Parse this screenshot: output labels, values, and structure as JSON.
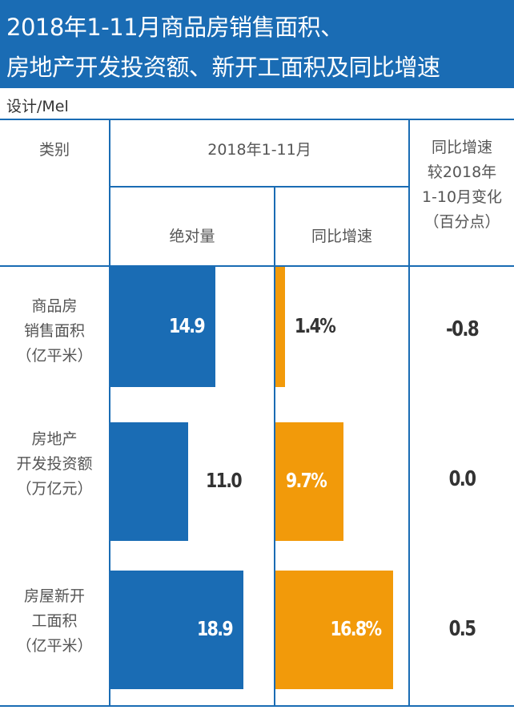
{
  "title": {
    "line1": "2018年1-11月商品房销售面积、",
    "line2": "房地产开发投资额、新开工面积及同比增速"
  },
  "credit": "设计/Mel",
  "headers": {
    "category": "类别",
    "period": "2018年1-11月",
    "absolute": "绝对量",
    "yoy": "同比增速",
    "change": [
      "同比增速",
      "较2018年",
      "1-10月变化",
      "（百分点）"
    ]
  },
  "colors": {
    "abs_bar": "#1a6cb4",
    "yoy_bar": "#f29a0a",
    "title_bg": "#1a6cb4"
  },
  "chart_data": {
    "type": "bar",
    "categories": [
      [
        "商品房",
        "销售面积",
        "（亿平米）"
      ],
      [
        "房地产",
        "开发投资额",
        "（万亿元）"
      ],
      [
        "房屋新开",
        "工面积",
        "（亿平米）"
      ]
    ],
    "absolute": {
      "values": [
        14.9,
        11.0,
        18.9
      ],
      "labels": [
        "14.9",
        "11.0",
        "18.9"
      ]
    },
    "yoy_growth_pct": {
      "values": [
        1.4,
        9.7,
        16.8
      ],
      "labels": [
        "1.4%",
        "9.7%",
        "16.8%"
      ]
    },
    "change_vs_jan_oct_pp": {
      "values": [
        -0.8,
        0.0,
        0.5
      ],
      "labels": [
        "-0.8",
        "0.0",
        "0.5"
      ]
    }
  }
}
